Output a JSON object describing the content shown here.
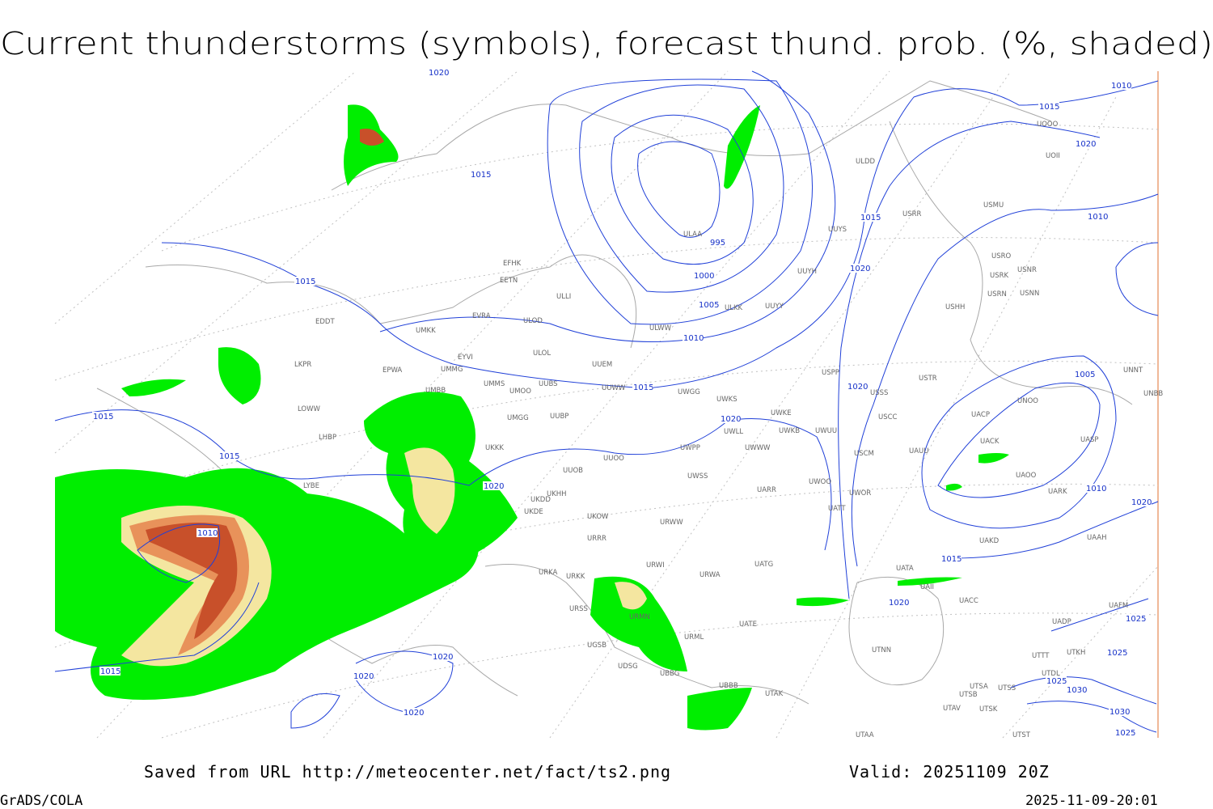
{
  "header": {
    "title": "Current thunderstorms (symbols), forecast thund. prob. (%, shaded)"
  },
  "footer": {
    "saved": "Saved from URL http://meteocenter.net/fact/ts2.png",
    "valid": "Valid: 20251109 20Z",
    "credit": "GrADS/COLA",
    "timestamp": "2025-11-09-20:01"
  },
  "isobar_labels": [
    "1020",
    "1015",
    "1015",
    "995",
    "1000",
    "1005",
    "1010",
    "1015",
    "1015",
    "1020",
    "1020",
    "1020",
    "1010",
    "1015",
    "1020",
    "1010",
    "1005",
    "1010",
    "1020",
    "1015",
    "1020",
    "1015",
    "1015",
    "1020",
    "1010",
    "1015",
    "1020",
    "1020",
    "1020",
    "1025",
    "1025",
    "1025",
    "1030",
    "1030",
    "1025"
  ],
  "station_labels": [
    "ULDD",
    "USRR",
    "USMU",
    "ULAA",
    "UUYS",
    "UUYH",
    "ULKK",
    "UUYY",
    "EFHK",
    "EETN",
    "ULLI",
    "EVRA",
    "ULOD",
    "EDDT",
    "UMKK",
    "ULWW",
    "EYVI",
    "ULOL",
    "UUEM",
    "EPWA",
    "UMMG",
    "LKPR",
    "UMMS",
    "UMOO",
    "UUBS",
    "UUWW",
    "UWGG",
    "UWKS",
    "UMBB",
    "LOWW",
    "UWKE",
    "UWKB",
    "UWUU",
    "USSS",
    "USTR",
    "USCC",
    "USPP",
    "UMGG",
    "UUBP",
    "UWLL",
    "UWPP",
    "UWWW",
    "USCM",
    "UAUU",
    "LHBP",
    "UKKK",
    "UUOO",
    "UUOB",
    "LYBE",
    "UWSS",
    "UARR",
    "UWOO",
    "UWOR",
    "UKHH",
    "UKDD",
    "UKDE",
    "UKOW",
    "URWW",
    "UATT",
    "URRR",
    "UAKD",
    "UAAH",
    "URWI",
    "UATG",
    "URKA",
    "URKK",
    "URWA",
    "UATA",
    "UAII",
    "UACC",
    "URSS",
    "URMN",
    "UATE",
    "URML",
    "UGSB",
    "UTNN",
    "UDSG",
    "UBBG",
    "UBBB",
    "UTAK",
    "UTSA",
    "UTSS",
    "UTSB",
    "UTAV",
    "UTSK",
    "UTAA",
    "UTST",
    "USRO",
    "USRK",
    "USNR",
    "USRN",
    "USNN",
    "USHH",
    "UOOO",
    "UOII",
    "UNNT",
    "UNBB",
    "UNOO",
    "UACP",
    "UACK",
    "UASP",
    "UAOO",
    "UARK",
    "UTTT",
    "UTDL",
    "UTKH",
    "UAFM",
    "UADP"
  ]
}
